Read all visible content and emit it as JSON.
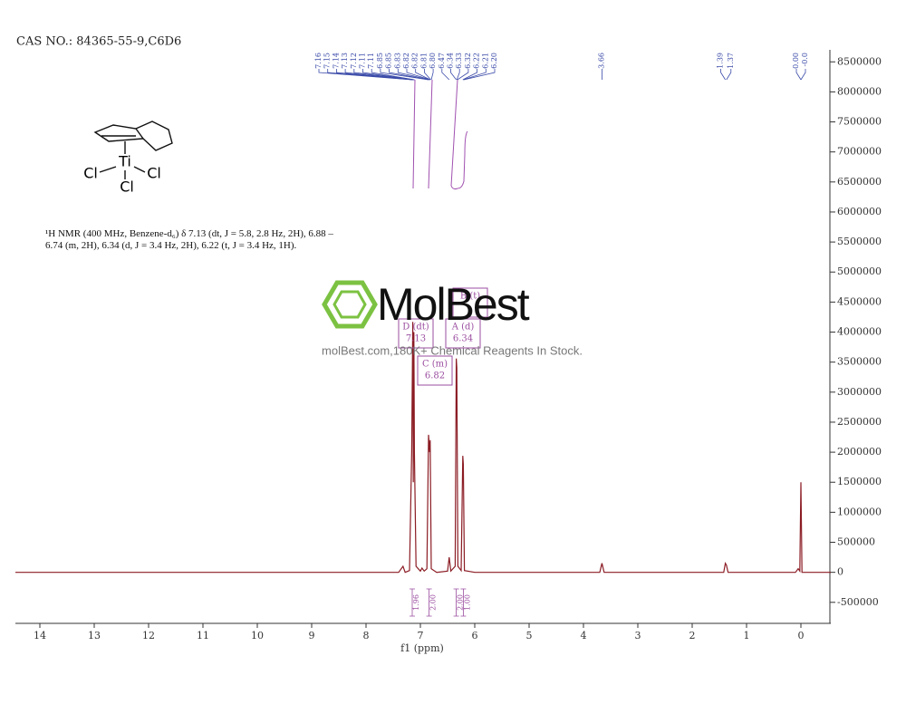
{
  "chart_data": {
    "type": "line",
    "title": "CAS NO.: 84365-55-9,C6D6",
    "x_label": "f1 (ppm)",
    "xlim": [
      14.45,
      -0.55
    ],
    "ylim": [
      -850000,
      8700000
    ],
    "xticks": [
      14,
      13,
      12,
      11,
      10,
      9,
      8,
      7,
      6,
      5,
      4,
      3,
      2,
      1,
      0
    ],
    "yticks": [
      -500000,
      0,
      500000,
      1000000,
      1500000,
      2000000,
      2500000,
      3000000,
      3500000,
      4000000,
      4500000,
      5000000,
      5500000,
      6000000,
      6500000,
      7000000,
      7500000,
      8000000,
      8500000
    ],
    "x": [
      14.45,
      7.4,
      7.32,
      7.28,
      7.2,
      7.16,
      7.14,
      7.13,
      7.12,
      7.11,
      7.08,
      7.0,
      6.97,
      6.93,
      6.88,
      6.85,
      6.83,
      6.82,
      6.8,
      6.7,
      6.5,
      6.47,
      6.44,
      6.36,
      6.34,
      6.33,
      6.31,
      6.25,
      6.22,
      6.21,
      6.19,
      6.0,
      3.7,
      3.66,
      3.62,
      1.42,
      1.39,
      1.37,
      1.34,
      0.1,
      0.05,
      0.02,
      0.0,
      -0.02,
      -0.55
    ],
    "series": [
      {
        "color": "#8b1c24",
        "values": [
          0,
          0,
          100000,
          0,
          30000,
          2000000,
          4170000,
          1500000,
          4000000,
          2000000,
          100000,
          20000,
          70000,
          20000,
          60000,
          2290000,
          2000000,
          2200000,
          60000,
          0,
          20000,
          250000,
          20000,
          100000,
          3560000,
          3400000,
          100000,
          30000,
          1940000,
          1800000,
          30000,
          0,
          0,
          150000,
          0,
          0,
          150000,
          120000,
          0,
          0,
          60000,
          20000,
          1500000,
          0,
          0
        ]
      }
    ],
    "peak_labels": [
      "7.16",
      "7.15",
      "7.14",
      "7.13",
      "7.12",
      "7.11",
      "7.11",
      "6.85",
      "6.85",
      "6.83",
      "6.82",
      "6.82",
      "6.81",
      "6.80",
      "6.47",
      "6.34",
      "6.33",
      "6.32",
      "6.22",
      "6.21",
      "6.20",
      "3.66",
      "1.39",
      "1.37",
      "0.00",
      "-0.0"
    ],
    "integrals": [
      {
        "label": "1.96",
        "range": [
          7.25,
          7.05
        ]
      },
      {
        "label": "2.00",
        "range": [
          6.9,
          6.78
        ]
      },
      {
        "label": "2.00",
        "range": [
          6.4,
          6.28
        ]
      },
      {
        "label": "1.00",
        "range": [
          6.26,
          6.16
        ]
      }
    ],
    "multiplets": [
      {
        "label": "D (dt)",
        "shift": "7.13"
      },
      {
        "label": "C (m)",
        "shift": "6.82"
      },
      {
        "label": "A (d)",
        "shift": "6.34"
      },
      {
        "label": "B (t)"
      }
    ]
  },
  "structure": {
    "atoms": [
      "Ti",
      "Cl",
      "Cl",
      "Cl"
    ]
  },
  "nmr_description": "¹H NMR (400 MHz, Benzene-d₆) δ 7.13 (dt, J = 5.8, 2.8 Hz, 2H), 6.88 – 6.74 (m, 2H), 6.34 (d, J = 3.4 Hz, 2H), 6.22 (t, J = 3.4 Hz, 1H).",
  "watermark": {
    "name": "MolBest",
    "tagline": "molBest.com,180K+ Chemical Reagents In Stock."
  }
}
